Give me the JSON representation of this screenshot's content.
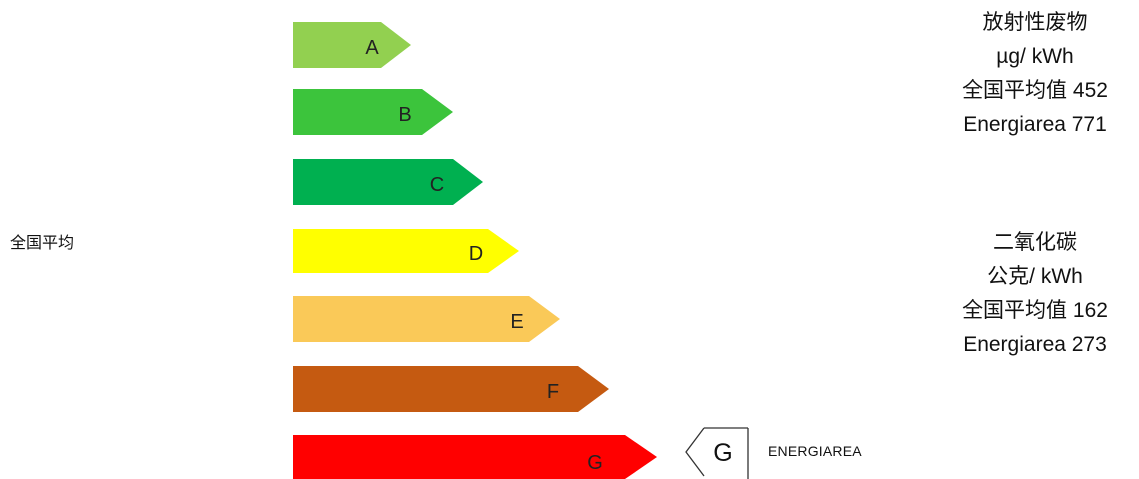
{
  "left_label": "全国平均",
  "classes": [
    {
      "letter": "A",
      "color": "#92d050"
    },
    {
      "letter": "B",
      "color": "#3cc43c"
    },
    {
      "letter": "C",
      "color": "#00b050"
    },
    {
      "letter": "D",
      "color": "#ffff00"
    },
    {
      "letter": "E",
      "color": "#fac958"
    },
    {
      "letter": "F",
      "color": "#c55a11"
    },
    {
      "letter": "G",
      "color": "#ff0000"
    }
  ],
  "radioactive_waste": {
    "title": "放射性废物",
    "unit": "µg/ kWh",
    "national_avg": "全国平均值 452",
    "energiarea": "Energiarea 771"
  },
  "co2": {
    "title": "二氧化碳",
    "unit": "公克/ kWh",
    "national_avg": "全国平均值 162",
    "energiarea": "Energiarea 273"
  },
  "marker": {
    "letter": "G",
    "caption": "ENERGIAREA"
  }
}
